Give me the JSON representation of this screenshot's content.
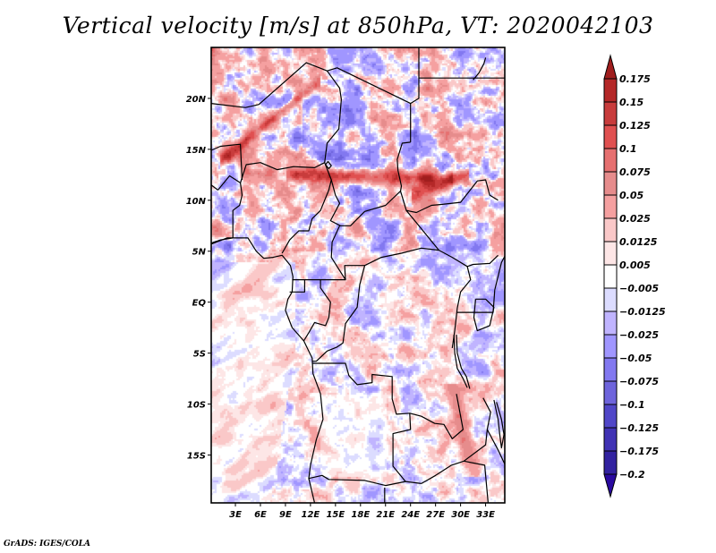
{
  "title": "Vertical velocity [m/s] at 850hPa, VT: 2020042103",
  "credit": "GrADS: IGES/COLA",
  "chart_data": {
    "type": "heatmap",
    "title": "Vertical velocity [m/s] at 850hPa, VT: 2020042103",
    "variable": "Vertical velocity",
    "units": "m/s",
    "level": "850hPa",
    "valid_time": "2020042103",
    "xlabel": "",
    "ylabel": "",
    "xlim": [
      0.1,
      35.3
    ],
    "ylim": [
      -19.7,
      25.0
    ],
    "x_ticks": [
      3,
      6,
      9,
      12,
      15,
      18,
      21,
      24,
      27,
      30,
      33
    ],
    "x_tick_labels": [
      "3E",
      "6E",
      "9E",
      "12E",
      "15E",
      "18E",
      "21E",
      "24E",
      "27E",
      "30E",
      "33E"
    ],
    "y_ticks": [
      20,
      15,
      10,
      5,
      0,
      -5,
      -10,
      -15
    ],
    "y_tick_labels": [
      "20N",
      "15N",
      "10N",
      "5N",
      "EQ",
      "5S",
      "10S",
      "15S"
    ],
    "grid": false,
    "legend": {
      "type": "colorbar",
      "placement": "right",
      "orientation": "vertical",
      "extend": "both",
      "levels": [
        0.175,
        0.15,
        0.125,
        0.1,
        0.075,
        0.05,
        0.025,
        0.0125,
        0.005,
        -0.005,
        -0.0125,
        -0.025,
        -0.05,
        -0.075,
        -0.1,
        -0.125,
        -0.175,
        -0.2
      ],
      "level_labels": [
        "0.175",
        "0.15",
        "0.125",
        "0.1",
        "0.075",
        "0.05",
        "0.025",
        "0.0125",
        "0.005",
        "−0.005",
        "−0.0125",
        "−0.025",
        "−0.05",
        "−0.075",
        "−0.1",
        "−0.125",
        "−0.175",
        "−0.2"
      ],
      "over_color": "#a01e1e",
      "under_color": "#2a0aa0",
      "colors": [
        "#b42828",
        "#c83c3c",
        "#e05050",
        "#e67070",
        "#e68c8c",
        "#f5a0a0",
        "#fac8c8",
        "#fde6e6",
        "#ffffff",
        "#dcdcff",
        "#c0b4ff",
        "#a096ff",
        "#8278f0",
        "#6e64dc",
        "#5046c8",
        "#4032b4",
        "#3222a0"
      ]
    },
    "features": {
      "strong_ascent_bands": [
        "Sahel band near 12-13N from ~10E to ~27E",
        "northwestern arc near 15-22N, 3-14E"
      ],
      "notable_regions": [
        "weak mixed field over Angola plateau near 10-15S, 14-20E",
        "broad weak subsidence over Gulf of Guinea and South Atlantic"
      ],
      "overlay": "country boundaries and coastlines (black lines)"
    }
  }
}
